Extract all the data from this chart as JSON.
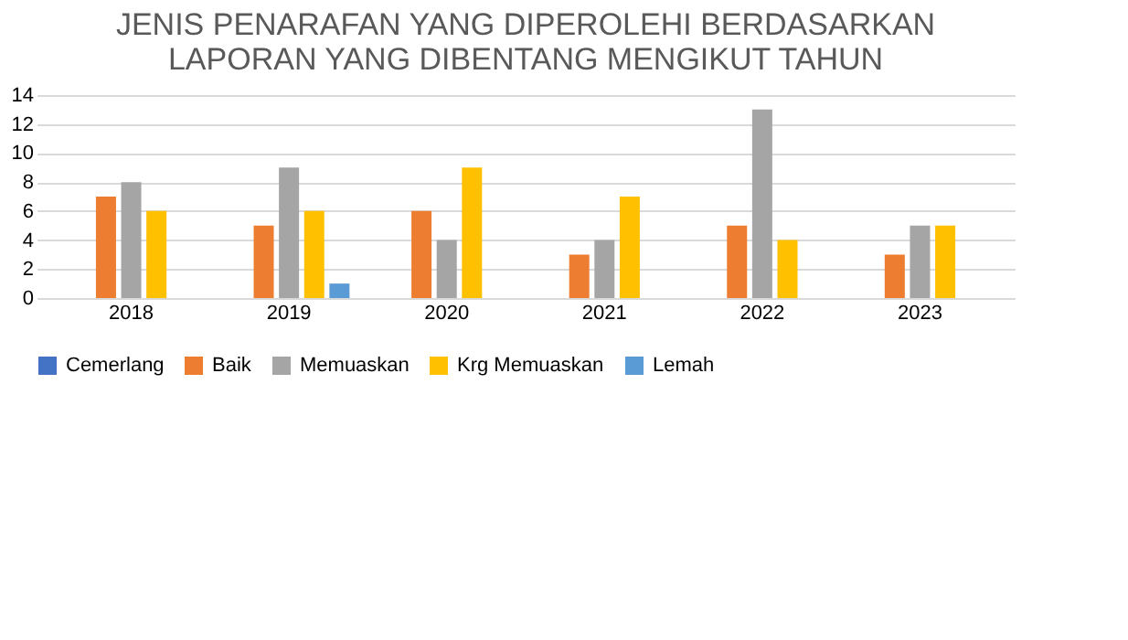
{
  "chart_data": {
    "type": "bar",
    "title": [
      "JENIS PENARAFAN YANG DIPEROLEHI BERDASARKAN",
      "LAPORAN YANG DIBENTANG MENGIKUT TAHUN"
    ],
    "categories": [
      "2018",
      "2019",
      "2020",
      "2021",
      "2022",
      "2023"
    ],
    "series": [
      {
        "name": "Cemerlang",
        "color": "#4472c4",
        "values": [
          0,
          0,
          0,
          0,
          0,
          0
        ]
      },
      {
        "name": "Baik",
        "color": "#ed7d31",
        "values": [
          7,
          5,
          6,
          3,
          5,
          3
        ]
      },
      {
        "name": "Memuaskan",
        "color": "#a5a5a5",
        "values": [
          8,
          9,
          4,
          4,
          13,
          5
        ]
      },
      {
        "name": "Krg Memuaskan",
        "color": "#ffc000",
        "values": [
          6,
          6,
          9,
          7,
          4,
          5
        ]
      },
      {
        "name": "Lemah",
        "color": "#5b9bd5",
        "values": [
          0,
          1,
          0,
          0,
          0,
          0
        ]
      }
    ],
    "ylim": [
      0,
      14
    ],
    "yticks": [
      0,
      2,
      4,
      6,
      8,
      10,
      12,
      14
    ],
    "grid": "y",
    "legend": "bottom"
  }
}
